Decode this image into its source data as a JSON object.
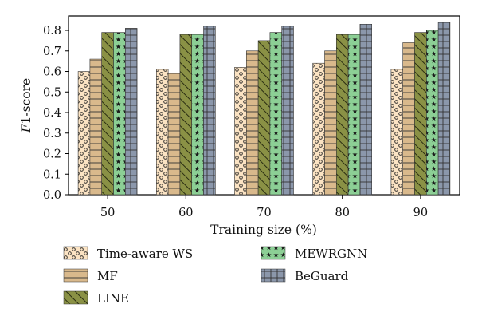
{
  "chart_data": {
    "type": "bar",
    "title": "",
    "xlabel": "Training size (%)",
    "ylabel_italic": "F",
    "ylabel_rest": "1-score",
    "categories": [
      "50",
      "60",
      "70",
      "80",
      "90"
    ],
    "ylim": [
      0,
      0.87
    ],
    "yticks": [
      "0.0",
      "0.1",
      "0.2",
      "0.3",
      "0.4",
      "0.5",
      "0.6",
      "0.7",
      "0.8"
    ],
    "grid": false,
    "legend_position": "bottom",
    "series": [
      {
        "name": "Time-aware WS",
        "values": [
          0.6,
          0.61,
          0.62,
          0.64,
          0.61
        ],
        "color": "#fbe3c3",
        "pattern": "circles"
      },
      {
        "name": "MF",
        "values": [
          0.66,
          0.59,
          0.7,
          0.7,
          0.74
        ],
        "color": "#d9b98c",
        "pattern": "horizontal-lines"
      },
      {
        "name": "LINE",
        "values": [
          0.79,
          0.78,
          0.75,
          0.78,
          0.79
        ],
        "color": "#8a9145",
        "pattern": "diagonal-hatch"
      },
      {
        "name": "MEWRGNN",
        "values": [
          0.79,
          0.78,
          0.79,
          0.78,
          0.8
        ],
        "color": "#8ccf95",
        "pattern": "stars"
      },
      {
        "name": "BeGuard",
        "values": [
          0.81,
          0.82,
          0.82,
          0.83,
          0.84
        ],
        "color": "#8b97ab",
        "pattern": "grid"
      }
    ]
  }
}
